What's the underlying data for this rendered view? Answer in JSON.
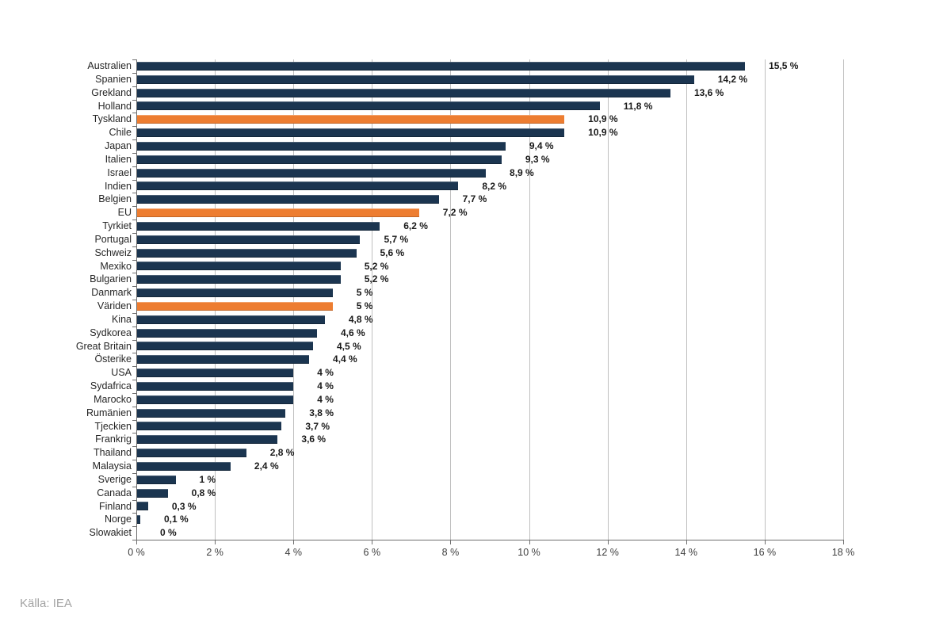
{
  "chart_data": {
    "type": "bar",
    "orientation": "horizontal",
    "title": "",
    "xlabel": "",
    "ylabel": "",
    "xlim": [
      0,
      18
    ],
    "grid": "vertical",
    "legend": "none",
    "categories": [
      "Australien",
      "Spanien",
      "Grekland",
      "Holland",
      "Tyskland",
      "Chile",
      "Japan",
      "Italien",
      "Israel",
      "Indien",
      "Belgien",
      "EU",
      "Tyrkiet",
      "Portugal",
      "Schweiz",
      "Mexiko",
      "Bulgarien",
      "Danmark",
      "Väriden",
      "Kina",
      "Sydkorea",
      "Great Britain",
      "Österike",
      "USA",
      "Sydafrica",
      "Marocko",
      "Rumänien",
      "Tjeckien",
      "Frankrig",
      "Thailand",
      "Malaysia",
      "Sverige",
      "Canada",
      "Finland",
      "Norge",
      "Slowakiet"
    ],
    "values": [
      15.5,
      14.2,
      13.6,
      11.8,
      10.9,
      10.9,
      9.4,
      9.3,
      8.9,
      8.2,
      7.7,
      7.2,
      6.2,
      5.7,
      5.6,
      5.2,
      5.2,
      5.0,
      5.0,
      4.8,
      4.6,
      4.5,
      4.4,
      4.0,
      4.0,
      4.0,
      3.8,
      3.7,
      3.6,
      2.8,
      2.4,
      1.0,
      0.8,
      0.3,
      0.1,
      0.0
    ],
    "value_labels": [
      "15,5 %",
      "14,2 %",
      "13,6 %",
      "11,8 %",
      "10,9 %",
      "10,9 %",
      "9,4 %",
      "9,3 %",
      "8,9 %",
      "8,2 %",
      "7,7 %",
      "7,2 %",
      "6,2 %",
      "5,7 %",
      "5,6 %",
      "5,2 %",
      "5,2 %",
      "5 %",
      "5 %",
      "4,8 %",
      "4,6 %",
      "4,5 %",
      "4,4 %",
      "4 %",
      "4 %",
      "4 %",
      "3,8 %",
      "3,7 %",
      "3,6 %",
      "2,8 %",
      "2,4 %",
      "1 %",
      "0,8 %",
      "0,3 %",
      "0,1 %",
      "0 %"
    ],
    "highlighted": [
      false,
      false,
      false,
      false,
      true,
      false,
      false,
      false,
      false,
      false,
      false,
      true,
      false,
      false,
      false,
      false,
      false,
      false,
      true,
      false,
      false,
      false,
      false,
      false,
      false,
      false,
      false,
      false,
      false,
      false,
      false,
      false,
      false,
      false,
      false,
      false
    ],
    "highlighted_categories": [
      "Tyskland",
      "EU",
      "Väriden"
    ],
    "x_tick_values": [
      0,
      2,
      4,
      6,
      8,
      10,
      12,
      14,
      16,
      18
    ],
    "x_tick_labels": [
      "0 %",
      "2 %",
      "4 %",
      "6 %",
      "8 %",
      "10 %",
      "12 %",
      "14 %",
      "16 %",
      "18 %"
    ],
    "bar_color": "#1b3550",
    "highlight_color": "#ed7d31",
    "gridline_color": "#bfbfbf",
    "axis_color": "#6e6e6e",
    "source": "Källa: IEA"
  }
}
